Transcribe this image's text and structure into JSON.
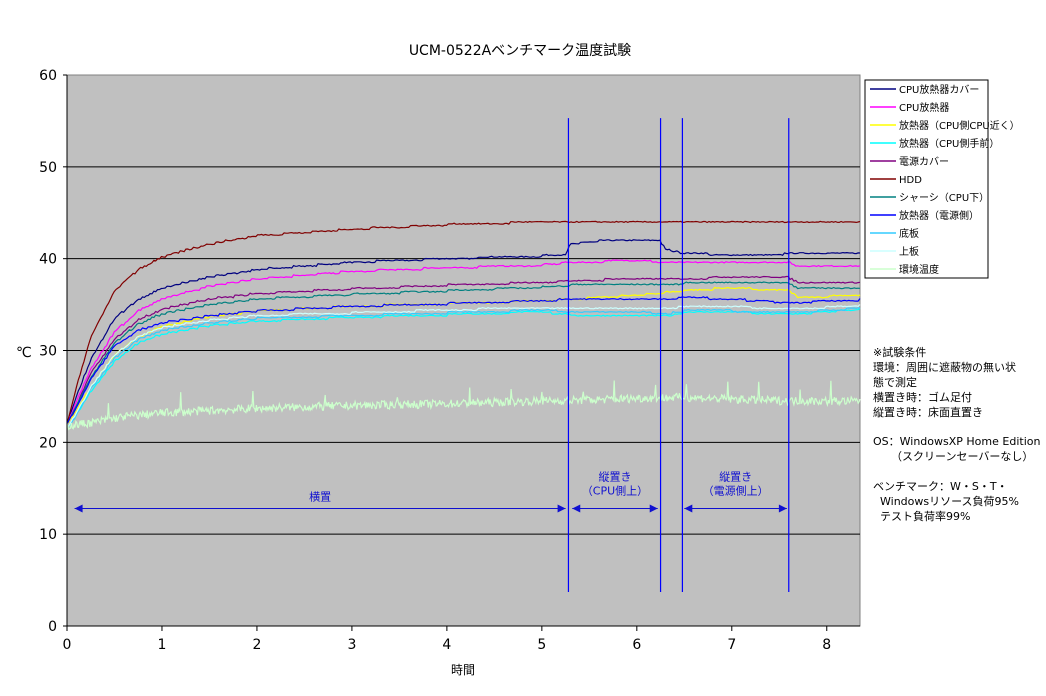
{
  "chart_data": {
    "type": "line",
    "title": "UCM-0522Aベンチマーク温度試験",
    "xlabel": "時間",
    "ylabel": "℃",
    "xlim": [
      0,
      8.35
    ],
    "ylim": [
      0,
      60
    ],
    "x_ticks": [
      "0",
      "1",
      "2",
      "3",
      "4",
      "5",
      "6",
      "7",
      "8"
    ],
    "y_ticks": [
      "0",
      "10",
      "20",
      "30",
      "40",
      "50",
      "60"
    ],
    "grid": "horizontal",
    "legend_position": "right",
    "series": [
      {
        "name": "CPU放熱器カバー",
        "color": "#000080",
        "points": [
          [
            0,
            22
          ],
          [
            0.1,
            25
          ],
          [
            0.25,
            29
          ],
          [
            0.5,
            33.5
          ],
          [
            0.75,
            35.5
          ],
          [
            1,
            36.8
          ],
          [
            1.5,
            38
          ],
          [
            2,
            38.8
          ],
          [
            3,
            39.6
          ],
          [
            4,
            40
          ],
          [
            5,
            40.3
          ],
          [
            5.25,
            40.4
          ],
          [
            5.3,
            41.6
          ],
          [
            5.6,
            41.9
          ],
          [
            6,
            42
          ],
          [
            6.25,
            41.9
          ],
          [
            6.3,
            41
          ],
          [
            6.5,
            40.6
          ],
          [
            7,
            40.4
          ],
          [
            7.55,
            40.5
          ],
          [
            7.62,
            40.5
          ],
          [
            8.35,
            40.5
          ]
        ]
      },
      {
        "name": "CPU放熱器",
        "color": "#ff00ff",
        "points": [
          [
            0,
            22
          ],
          [
            0.1,
            24.5
          ],
          [
            0.25,
            28
          ],
          [
            0.5,
            32
          ],
          [
            0.75,
            34.3
          ],
          [
            1,
            35.6
          ],
          [
            1.5,
            37
          ],
          [
            2,
            37.8
          ],
          [
            3,
            38.6
          ],
          [
            4,
            39
          ],
          [
            5,
            39.3
          ],
          [
            5.3,
            39.6
          ],
          [
            6,
            39.8
          ],
          [
            6.3,
            39.6
          ],
          [
            6.5,
            39.5
          ],
          [
            7,
            39.7
          ],
          [
            7.6,
            39.6
          ],
          [
            7.7,
            39.1
          ],
          [
            8.35,
            39.1
          ]
        ]
      },
      {
        "name": "放熱器（CPU側CPU近く）",
        "color": "#ffff00",
        "points": [
          [
            0,
            22
          ],
          [
            0.1,
            23.5
          ],
          [
            0.25,
            26
          ],
          [
            0.5,
            29.5
          ],
          [
            0.75,
            31.5
          ],
          [
            1,
            32.6
          ],
          [
            1.5,
            33.7
          ],
          [
            2,
            34.3
          ],
          [
            3,
            34.8
          ],
          [
            4,
            35.1
          ],
          [
            5,
            35.4
          ],
          [
            5.3,
            35.6
          ],
          [
            6,
            36
          ],
          [
            6.3,
            36.3
          ],
          [
            6.6,
            36.6
          ],
          [
            7,
            36.8
          ],
          [
            7.6,
            36.5
          ],
          [
            7.7,
            35.8
          ],
          [
            8.35,
            36
          ]
        ]
      },
      {
        "name": "放熱器（CPU側手前）",
        "color": "#00ffff",
        "points": [
          [
            0,
            21.5
          ],
          [
            0.1,
            23
          ],
          [
            0.25,
            25.5
          ],
          [
            0.5,
            28.8
          ],
          [
            0.75,
            30.8
          ],
          [
            1,
            31.8
          ],
          [
            1.5,
            32.7
          ],
          [
            2,
            33.2
          ],
          [
            3,
            33.6
          ],
          [
            4,
            33.9
          ],
          [
            5,
            34.2
          ],
          [
            5.3,
            33.9
          ],
          [
            6,
            33.8
          ],
          [
            6.3,
            33.7
          ],
          [
            6.5,
            34.1
          ],
          [
            7,
            34.2
          ],
          [
            7.6,
            33.9
          ],
          [
            8.35,
            34.5
          ]
        ]
      },
      {
        "name": "電源カバー",
        "color": "#800080",
        "points": [
          [
            0,
            22
          ],
          [
            0.1,
            24
          ],
          [
            0.25,
            27.5
          ],
          [
            0.5,
            31.2
          ],
          [
            0.75,
            33.3
          ],
          [
            1,
            34.5
          ],
          [
            1.5,
            35.6
          ],
          [
            2,
            36.2
          ],
          [
            3,
            36.7
          ],
          [
            4,
            37.1
          ],
          [
            5,
            37.4
          ],
          [
            5.3,
            37.6
          ],
          [
            6,
            37.8
          ],
          [
            6.3,
            37.7
          ],
          [
            6.5,
            37.8
          ],
          [
            7,
            38
          ],
          [
            7.6,
            37.9
          ],
          [
            7.7,
            37.4
          ],
          [
            8.35,
            37.4
          ]
        ]
      },
      {
        "name": "HDD",
        "color": "#800000",
        "points": [
          [
            0,
            22
          ],
          [
            0.1,
            26
          ],
          [
            0.25,
            31.5
          ],
          [
            0.5,
            36.5
          ],
          [
            0.75,
            38.8
          ],
          [
            1,
            40.2
          ],
          [
            1.5,
            41.6
          ],
          [
            2,
            42.5
          ],
          [
            3,
            43.2
          ],
          [
            4,
            43.7
          ],
          [
            5,
            44
          ],
          [
            5.3,
            44.1
          ],
          [
            6,
            44
          ],
          [
            6.5,
            43.9
          ],
          [
            7,
            44
          ],
          [
            7.6,
            43.9
          ],
          [
            8.35,
            43.9
          ]
        ]
      },
      {
        "name": "シャーシ（CPU下）",
        "color": "#008080",
        "points": [
          [
            0,
            22
          ],
          [
            0.1,
            24
          ],
          [
            0.25,
            27
          ],
          [
            0.5,
            30.8
          ],
          [
            0.75,
            32.9
          ],
          [
            1,
            34
          ],
          [
            1.5,
            35
          ],
          [
            2,
            35.6
          ],
          [
            3,
            36.1
          ],
          [
            4,
            36.5
          ],
          [
            5,
            36.9
          ],
          [
            5.3,
            37.1
          ],
          [
            6,
            37.3
          ],
          [
            6.3,
            37.2
          ],
          [
            6.5,
            37.3
          ],
          [
            7,
            37.4
          ],
          [
            7.6,
            37.3
          ],
          [
            7.7,
            36.8
          ],
          [
            8.35,
            36.8
          ]
        ]
      },
      {
        "name": "放熱器（電源側）",
        "color": "#0000ff",
        "points": [
          [
            0,
            22
          ],
          [
            0.1,
            23.8
          ],
          [
            0.25,
            26.8
          ],
          [
            0.5,
            30.5
          ],
          [
            0.75,
            32.2
          ],
          [
            1,
            33
          ],
          [
            1.5,
            33.8
          ],
          [
            2,
            34.3
          ],
          [
            3,
            34.8
          ],
          [
            4,
            35.1
          ],
          [
            5,
            35.4
          ],
          [
            5.3,
            35.6
          ],
          [
            6,
            35.6
          ],
          [
            6.3,
            35.5
          ],
          [
            6.5,
            35.8
          ],
          [
            7,
            35.6
          ],
          [
            7.6,
            35.2
          ],
          [
            8.35,
            35.5
          ]
        ]
      },
      {
        "name": "底板",
        "color": "#33ccff",
        "points": [
          [
            0,
            21.5
          ],
          [
            0.1,
            23
          ],
          [
            0.25,
            25.8
          ],
          [
            0.5,
            29.2
          ],
          [
            0.75,
            31.2
          ],
          [
            1,
            32.2
          ],
          [
            1.5,
            33
          ],
          [
            2,
            33.5
          ],
          [
            3,
            33.8
          ],
          [
            4,
            34.1
          ],
          [
            5,
            34.4
          ],
          [
            5.3,
            34.2
          ],
          [
            6,
            34.2
          ],
          [
            6.3,
            34
          ],
          [
            6.5,
            34.3
          ],
          [
            7,
            34.3
          ],
          [
            7.6,
            34.1
          ],
          [
            8.35,
            34.6
          ]
        ]
      },
      {
        "name": "上板",
        "color": "#ccffff",
        "points": [
          [
            0,
            21.5
          ],
          [
            0.1,
            23.2
          ],
          [
            0.25,
            26
          ],
          [
            0.5,
            29.5
          ],
          [
            0.75,
            31.5
          ],
          [
            1,
            32.5
          ],
          [
            1.5,
            33.3
          ],
          [
            2,
            33.8
          ],
          [
            3,
            34.1
          ],
          [
            4,
            34.4
          ],
          [
            5,
            34.7
          ],
          [
            5.3,
            34.6
          ],
          [
            6,
            34.6
          ],
          [
            6.3,
            34.5
          ],
          [
            6.5,
            34.8
          ],
          [
            7,
            34.8
          ],
          [
            7.6,
            34.5
          ],
          [
            8.35,
            34.9
          ]
        ]
      },
      {
        "name": "環境温度",
        "color": "#ccffcc",
        "noisy": true,
        "points": [
          [
            0,
            21.8
          ],
          [
            0.3,
            22.2
          ],
          [
            0.6,
            22.8
          ],
          [
            1,
            23.2
          ],
          [
            2,
            23.7
          ],
          [
            3,
            24
          ],
          [
            4,
            24.2
          ],
          [
            5,
            24.5
          ],
          [
            5.5,
            24.6
          ],
          [
            6,
            24.8
          ],
          [
            6.5,
            24.9
          ],
          [
            7,
            24.7
          ],
          [
            7.6,
            24.5
          ],
          [
            8.35,
            24.5
          ]
        ]
      }
    ],
    "markers": [
      5.28,
      6.25,
      6.48,
      7.6
    ],
    "regions": [
      {
        "label": "横置",
        "from": 0.08,
        "to": 5.25,
        "y": 12.8
      },
      {
        "label": "縦置き",
        "sub": "（CPU側上）",
        "from": 5.32,
        "to": 6.22,
        "y": 12.8
      },
      {
        "label": "縦置き",
        "sub": "（電源側上）",
        "from": 6.5,
        "to": 7.58,
        "y": 12.8
      }
    ]
  },
  "notes": {
    "conditions": [
      "※試験条件",
      "環境：周囲に遮蔽物の無い状",
      "態で測定",
      "横置き時：ゴム足付",
      "縦置き時：床面直置き"
    ],
    "os": [
      "OS：WindowsXP Home Edition",
      "（スクリーンセーバーなし）"
    ],
    "benchmark": [
      "ベンチマーク：W・S・T・",
      "Windowsリソース負荷95%",
      "テスト負荷率99%"
    ]
  },
  "colors": {
    "plot_bg": "#c0c0c0",
    "grid": "#000000",
    "marker_line": "#0000ff",
    "annotation": "#1010d0"
  }
}
